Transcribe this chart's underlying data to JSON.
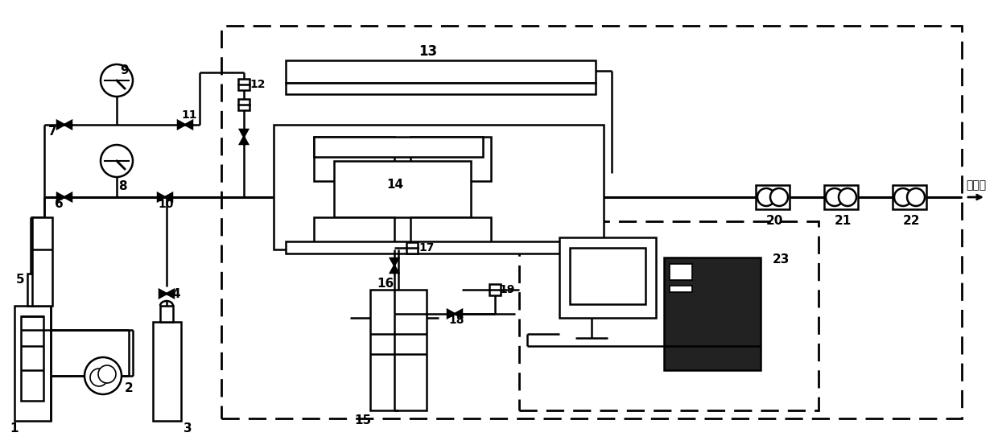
{
  "bg": "#ffffff",
  "lc": "#000000",
  "lw": 1.8,
  "fw": 12.4,
  "fh": 5.53,
  "dpi": 100,
  "atm_text": "至大气",
  "IH": 553,
  "IW": 1240
}
